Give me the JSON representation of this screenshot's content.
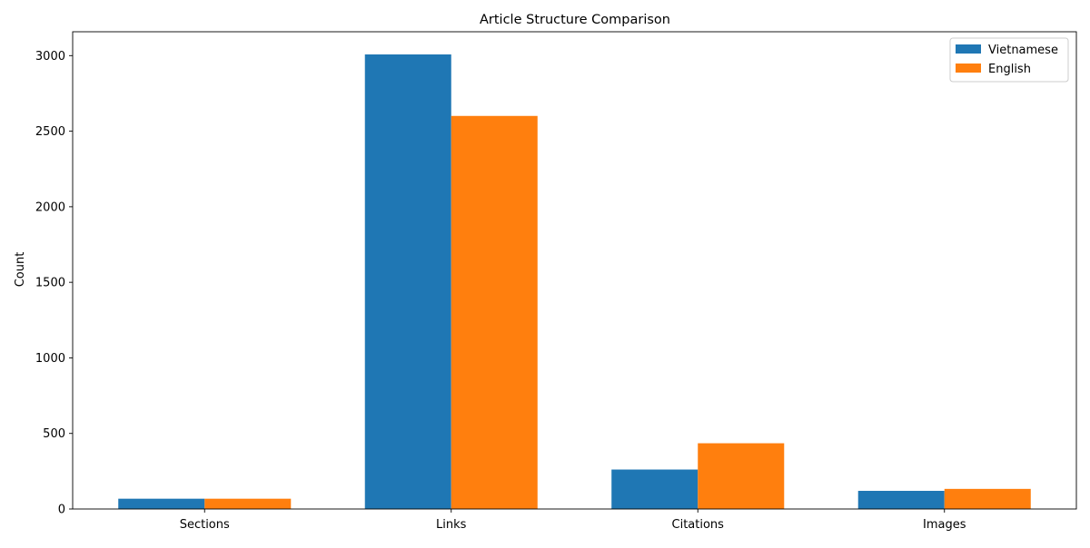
{
  "chart_data": {
    "type": "bar",
    "title": "Article Structure Comparison",
    "xlabel": "",
    "ylabel": "Count",
    "categories": [
      "Sections",
      "Links",
      "Citations",
      "Images"
    ],
    "series": [
      {
        "name": "Vietnamese",
        "values": [
          68,
          3008,
          261,
          120
        ],
        "color": "#1f77b4"
      },
      {
        "name": "English",
        "values": [
          68,
          2601,
          435,
          133
        ],
        "color": "#ff7f0e"
      }
    ],
    "ylim": [
      0,
      3158
    ],
    "yticks": [
      0,
      500,
      1000,
      1500,
      2000,
      2500,
      3000
    ],
    "grid": false,
    "legend_position": "top-right"
  }
}
